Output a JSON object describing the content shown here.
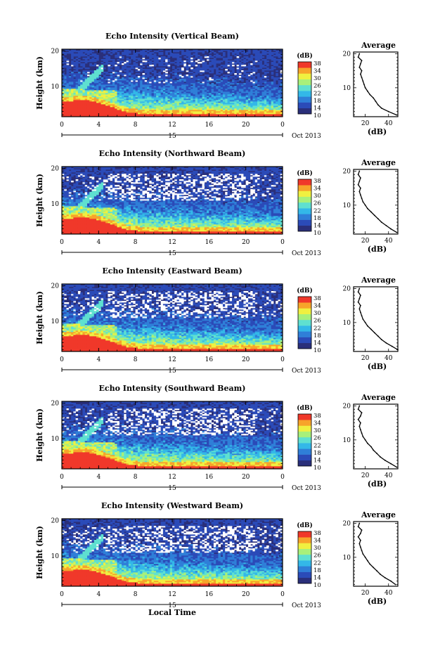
{
  "chart_data": {
    "type": "heatmap",
    "xlabel": "Local Time",
    "x_ticks": [
      "0",
      "4",
      "8",
      "12",
      "16",
      "20",
      "0"
    ],
    "xlim": [
      0,
      24
    ],
    "date_day": "15",
    "date_month": "Oct 2013",
    "ylabel": "Height (km)",
    "y_ticks": [
      "20",
      "10"
    ],
    "ylim": [
      1.5,
      20.5
    ],
    "colorbar": {
      "unit": "(dB)",
      "ticks": [
        "38",
        "34",
        "30",
        "26",
        "22",
        "18",
        "14",
        "10"
      ],
      "range": [
        10,
        38
      ],
      "colors": [
        "#2a2f7a",
        "#2b4bb8",
        "#2f7fd8",
        "#33b8e8",
        "#5fe0d0",
        "#a8f07a",
        "#f0f040",
        "#f7a42a",
        "#f0382a"
      ]
    },
    "profile": {
      "title": "Average",
      "xlabel": "(dB)",
      "x_ticks": [
        "20",
        "40"
      ],
      "xlim": [
        10,
        48
      ],
      "y_ticks": [
        "20",
        "10"
      ],
      "ylim": [
        1.5,
        20.5
      ]
    },
    "panels": [
      {
        "title": "Echo Intensity (Vertical Beam)",
        "profile_height_km": [
          2,
          3,
          4,
          5,
          6,
          7,
          8,
          9,
          10,
          11,
          12,
          13,
          14,
          15,
          16,
          17,
          18,
          19,
          20
        ],
        "profile_db": [
          47,
          40,
          34,
          31,
          29,
          27,
          24,
          22,
          20,
          19,
          18,
          17,
          16,
          17,
          15,
          16,
          17,
          14,
          15
        ]
      },
      {
        "title": "Echo Intensity (Northward Beam)",
        "profile_height_km": [
          2,
          3,
          4,
          5,
          6,
          7,
          8,
          9,
          10,
          11,
          12,
          13,
          14,
          15,
          16,
          17,
          18,
          19,
          20
        ],
        "profile_db": [
          47,
          42,
          38,
          34,
          31,
          28,
          25,
          22,
          20,
          18,
          17,
          16,
          15,
          16,
          14,
          15,
          16,
          14,
          15
        ]
      },
      {
        "title": "Echo Intensity (Eastward Beam)",
        "profile_height_km": [
          2,
          3,
          4,
          5,
          6,
          7,
          8,
          9,
          10,
          11,
          12,
          13,
          14,
          15,
          16,
          17,
          18,
          19,
          20
        ],
        "profile_db": [
          48,
          43,
          38,
          34,
          31,
          28,
          25,
          22,
          20,
          18,
          17,
          16,
          15,
          16,
          14,
          15,
          16,
          14,
          15
        ]
      },
      {
        "title": "Echo Intensity (Southward Beam)",
        "profile_height_km": [
          2,
          3,
          4,
          5,
          6,
          7,
          8,
          9,
          10,
          11,
          12,
          13,
          14,
          15,
          16,
          17,
          18,
          19,
          20
        ],
        "profile_db": [
          47,
          42,
          37,
          33,
          30,
          27,
          25,
          22,
          20,
          18,
          17,
          16,
          15,
          16,
          14,
          16,
          17,
          14,
          15
        ]
      },
      {
        "title": "Echo Intensity (Westward Beam)",
        "profile_height_km": [
          2,
          3,
          4,
          5,
          6,
          7,
          8,
          9,
          10,
          11,
          12,
          13,
          14,
          15,
          16,
          17,
          18,
          19,
          20
        ],
        "profile_db": [
          46,
          42,
          37,
          33,
          30,
          27,
          24,
          22,
          20,
          18,
          17,
          16,
          15,
          16,
          14,
          16,
          17,
          14,
          15
        ]
      }
    ]
  }
}
